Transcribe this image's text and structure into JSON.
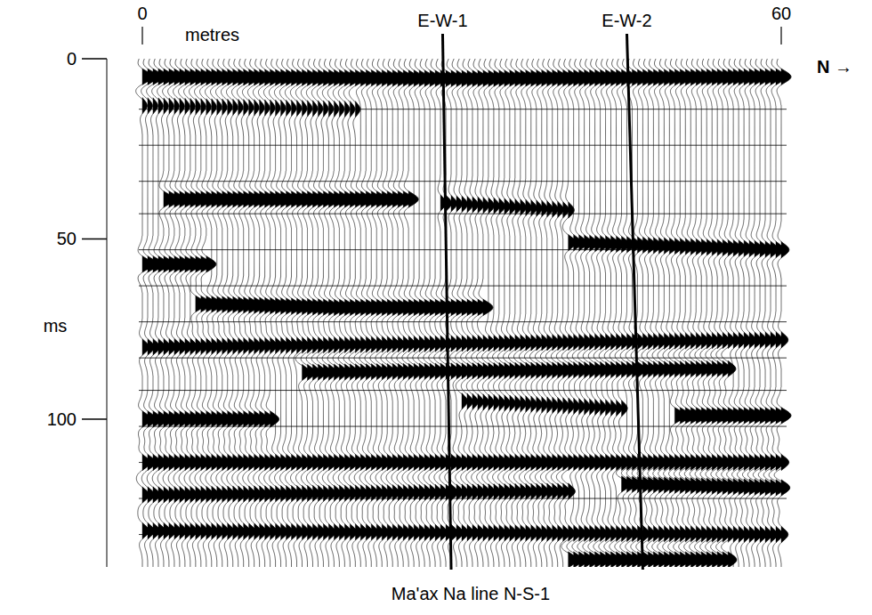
{
  "chart_data": {
    "type": "seismic_section",
    "title": "Ma'ax Na line N-S-1",
    "xlabel": "metres",
    "ylabel": "ms",
    "direction_label": "N →",
    "xlim": [
      0,
      60
    ],
    "xticks": [
      0,
      60
    ],
    "ylim": [
      0,
      141
    ],
    "yticks": [
      0,
      50,
      100
    ],
    "grid": true,
    "grid_times": [
      14,
      24,
      34,
      43,
      53,
      63,
      73,
      83,
      92,
      102,
      112,
      122,
      132
    ],
    "trace_spacing": 0.5,
    "reflectors": [
      {
        "x": [
          0,
          30,
          60
        ],
        "t": [
          5,
          5.5,
          5
        ],
        "amp": 1.0
      },
      {
        "x": [
          0,
          20
        ],
        "t": [
          13,
          14
        ],
        "amp": 0.5
      },
      {
        "x": [
          2,
          25
        ],
        "t": [
          39,
          39
        ],
        "amp": 1.0
      },
      {
        "x": [
          28,
          40
        ],
        "t": [
          40,
          42
        ],
        "amp": 0.6
      },
      {
        "x": [
          0,
          6
        ],
        "t": [
          57,
          57
        ],
        "amp": 1.0
      },
      {
        "x": [
          40,
          60
        ],
        "t": [
          51,
          53
        ],
        "amp": 0.8
      },
      {
        "x": [
          5,
          18,
          32
        ],
        "t": [
          68,
          69,
          69
        ],
        "amp": 1.0
      },
      {
        "x": [
          0,
          60
        ],
        "t": [
          80,
          78
        ],
        "amp": 0.7
      },
      {
        "x": [
          15,
          55
        ],
        "t": [
          87,
          86
        ],
        "amp": 0.8
      },
      {
        "x": [
          0,
          12
        ],
        "t": [
          100,
          100
        ],
        "amp": 0.9
      },
      {
        "x": [
          30,
          45
        ],
        "t": [
          95,
          97
        ],
        "amp": 0.6
      },
      {
        "x": [
          50,
          60
        ],
        "t": [
          99,
          99
        ],
        "amp": 1.0
      },
      {
        "x": [
          0,
          60
        ],
        "t": [
          112,
          112
        ],
        "amp": 0.8
      },
      {
        "x": [
          0,
          40
        ],
        "t": [
          121,
          120
        ],
        "amp": 0.7
      },
      {
        "x": [
          45,
          60
        ],
        "t": [
          118,
          119
        ],
        "amp": 0.9
      },
      {
        "x": [
          0,
          60
        ],
        "t": [
          131,
          132
        ],
        "amp": 0.7
      },
      {
        "x": [
          40,
          55
        ],
        "t": [
          139,
          139
        ],
        "amp": 0.9
      }
    ],
    "lines": [
      {
        "label": "E-W-1",
        "x_top": 28.2,
        "x_bottom": 29.0
      },
      {
        "label": "E-W-2",
        "x_top": 45.5,
        "x_bottom": 47.0
      }
    ]
  }
}
